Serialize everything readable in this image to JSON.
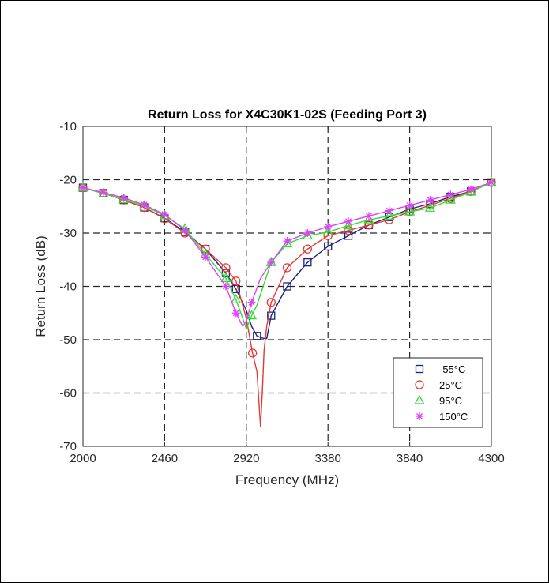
{
  "chart_data": {
    "type": "line",
    "title": "Return Loss for X4C30K1-02S (Feeding Port 3)",
    "xlabel": "Frequency (MHz)",
    "ylabel": "Return Loss (dB)",
    "xlim": [
      2000,
      4300
    ],
    "ylim": [
      -70,
      -10
    ],
    "xticks": [
      2000,
      2460,
      2920,
      3380,
      3840,
      4300
    ],
    "yticks": [
      -10,
      -20,
      -30,
      -40,
      -50,
      -60,
      -70
    ],
    "xtick_labels": [
      "2000",
      "2460",
      "2920",
      "3380",
      "3840",
      "4300"
    ],
    "ytick_labels": [
      "-10",
      "-20",
      "-30",
      "-40",
      "-50",
      "-60",
      "-70"
    ],
    "grid": true,
    "grid_style": "dashed",
    "legend_position": "bottom-right",
    "series": [
      {
        "name": "-55°C",
        "color": "#1a237e",
        "marker": "square",
        "x": [
          2000,
          2115,
          2230,
          2345,
          2460,
          2575,
          2690,
          2805,
          2862,
          2920,
          2950,
          2980,
          3010,
          3035,
          3060,
          3150,
          3265,
          3380,
          3495,
          3610,
          3725,
          3840,
          3955,
          4070,
          4185,
          4300
        ],
        "y": [
          -21.5,
          -22.5,
          -23.8,
          -25.2,
          -27.2,
          -29.8,
          -33.0,
          -37.5,
          -40.5,
          -44.5,
          -47.5,
          -49.3,
          -49.7,
          -49.8,
          -45.5,
          -40.0,
          -35.5,
          -32.5,
          -30.5,
          -28.5,
          -27.0,
          -25.5,
          -24.5,
          -23.2,
          -22.2,
          -20.5
        ],
        "marker_x": [
          2000,
          2115,
          2230,
          2345,
          2460,
          2575,
          2690,
          2805,
          2862,
          2980,
          3060,
          3150,
          3265,
          3380,
          3495,
          3610,
          3725,
          3840,
          3955,
          4070,
          4185,
          4300
        ]
      },
      {
        "name": "25°C",
        "color": "#e53935",
        "marker": "circle",
        "x": [
          2000,
          2115,
          2230,
          2345,
          2460,
          2575,
          2690,
          2805,
          2862,
          2920,
          2955,
          2980,
          3000,
          3010,
          3020,
          3035,
          3060,
          3150,
          3265,
          3380,
          3495,
          3610,
          3725,
          3840,
          3955,
          4070,
          4185,
          4300
        ],
        "y": [
          -21.5,
          -22.5,
          -23.8,
          -25.2,
          -27.3,
          -30.0,
          -33.0,
          -36.5,
          -39.0,
          -46.0,
          -52.5,
          -56.0,
          -66.3,
          -60.0,
          -52.0,
          -47.5,
          -43.0,
          -36.5,
          -33.0,
          -30.5,
          -29.5,
          -28.5,
          -27.5,
          -26.0,
          -24.8,
          -23.5,
          -22.2,
          -20.5
        ],
        "marker_x": [
          2000,
          2115,
          2230,
          2345,
          2460,
          2575,
          2690,
          2805,
          2862,
          2955,
          3060,
          3150,
          3265,
          3380,
          3495,
          3610,
          3725,
          3840,
          3955,
          4070,
          4185,
          4300
        ]
      },
      {
        "name": "95°C",
        "color": "#33dd33",
        "marker": "triangle",
        "x": [
          2000,
          2115,
          2230,
          2345,
          2460,
          2575,
          2690,
          2805,
          2862,
          2900,
          2920,
          2950,
          2980,
          3060,
          3150,
          3265,
          3380,
          3495,
          3610,
          3725,
          3840,
          3955,
          4070,
          4185,
          4300
        ],
        "y": [
          -21.5,
          -22.6,
          -23.7,
          -24.9,
          -26.7,
          -29.2,
          -34.0,
          -38.5,
          -42.5,
          -46.0,
          -48.0,
          -45.5,
          -43.5,
          -35.5,
          -32.0,
          -30.5,
          -29.8,
          -28.6,
          -27.5,
          -26.8,
          -26.0,
          -25.3,
          -23.8,
          -22.3,
          -20.5
        ],
        "marker_x": [
          2000,
          2115,
          2230,
          2345,
          2460,
          2575,
          2690,
          2805,
          2862,
          2950,
          3060,
          3150,
          3265,
          3380,
          3495,
          3610,
          3725,
          3840,
          3955,
          4070,
          4185,
          4300
        ]
      },
      {
        "name": "150°C",
        "color": "#e040fb",
        "marker": "asterisk",
        "x": [
          2000,
          2115,
          2230,
          2345,
          2460,
          2575,
          2690,
          2805,
          2862,
          2900,
          2920,
          2950,
          3000,
          3060,
          3150,
          3265,
          3380,
          3495,
          3610,
          3725,
          3840,
          3955,
          4070,
          4185,
          4300
        ],
        "y": [
          -21.5,
          -22.4,
          -23.4,
          -24.7,
          -26.5,
          -29.5,
          -34.5,
          -40.0,
          -45.0,
          -47.5,
          -46.5,
          -43.0,
          -38.5,
          -35.5,
          -31.5,
          -30.0,
          -28.8,
          -27.8,
          -26.8,
          -25.8,
          -24.8,
          -23.8,
          -22.8,
          -21.8,
          -20.5
        ],
        "marker_x": [
          2000,
          2115,
          2230,
          2345,
          2460,
          2575,
          2690,
          2805,
          2862,
          2950,
          3060,
          3150,
          3265,
          3380,
          3495,
          3610,
          3725,
          3840,
          3955,
          4070,
          4185,
          4300
        ]
      }
    ]
  }
}
